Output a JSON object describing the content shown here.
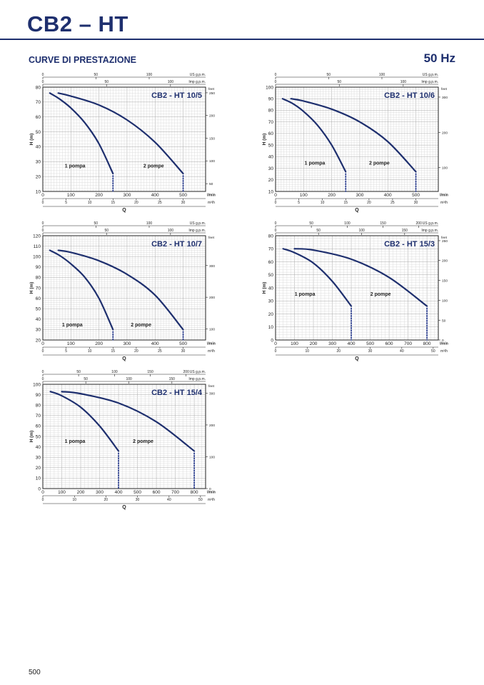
{
  "page": {
    "title": "CB2 – HT",
    "section": "CURVE DI PRESTAZIONE",
    "frequency": "50 Hz",
    "page_number": "500"
  },
  "colors": {
    "brand": "#1e2f6e",
    "curve": "#1e2f6e",
    "grid": "#c8c8c8",
    "dots": "#2a3d8f"
  },
  "chart_data": [
    {
      "type": "line",
      "title": "CB2 - HT 10/5",
      "xlabel": "Q",
      "ylabel": "H (m)",
      "x_unit": "l/min",
      "xlim": [
        0,
        580
      ],
      "ylim": [
        10,
        80
      ],
      "x_ticks": [
        0,
        100,
        200,
        300,
        400,
        500
      ],
      "y_ticks": [
        10,
        20,
        30,
        40,
        50,
        60,
        70,
        80
      ],
      "secondary_axes": [
        {
          "name": "US g.p.m.",
          "ticks": [
            [
              "0",
              0
            ],
            [
              "50",
              189
            ],
            [
              "100",
              379
            ]
          ]
        },
        {
          "name": "Imp g.p.m.",
          "ticks": [
            [
              "0",
              0
            ],
            [
              "50",
              227
            ],
            [
              "100",
              455
            ]
          ]
        },
        {
          "name": "m³/h",
          "ticks": [
            [
              "0",
              0
            ],
            [
              "5",
              83
            ],
            [
              "10",
              167
            ],
            [
              "15",
              250
            ],
            [
              "20",
              333
            ],
            [
              "25",
              417
            ],
            [
              "30",
              500
            ]
          ]
        }
      ],
      "feet_axis": {
        "name": "feet",
        "ticks": [
          [
            "50",
            15.2
          ],
          [
            "100",
            30.5
          ],
          [
            "150",
            45.7
          ],
          [
            "200",
            61
          ],
          [
            "250",
            76.2
          ]
        ]
      },
      "series": [
        {
          "name": "1 pompa",
          "x": [
            25,
            60,
            100,
            150,
            200,
            250
          ],
          "y": [
            76,
            72,
            66,
            56,
            42,
            22
          ],
          "cutoff": 250
        },
        {
          "name": "2 pompe",
          "x": [
            55,
            100,
            200,
            300,
            400,
            500
          ],
          "y": [
            76,
            74,
            68,
            58,
            43,
            22
          ],
          "cutoff": 500
        }
      ],
      "labels": [
        {
          "text": "1 pompa",
          "x": 115,
          "y": 26
        },
        {
          "text": "2 pompe",
          "x": 395,
          "y": 26
        }
      ]
    },
    {
      "type": "line",
      "title": "CB2 - HT 10/6",
      "xlabel": "Q",
      "ylabel": "H (m)",
      "x_unit": "l/min",
      "xlim": [
        0,
        580
      ],
      "ylim": [
        10,
        100
      ],
      "x_ticks": [
        0,
        100,
        200,
        300,
        400,
        500
      ],
      "y_ticks": [
        10,
        20,
        30,
        40,
        50,
        60,
        70,
        80,
        90,
        100
      ],
      "secondary_axes": [
        {
          "name": "US g.p.m.",
          "ticks": [
            [
              "0",
              0
            ],
            [
              "50",
              189
            ],
            [
              "100",
              379
            ]
          ]
        },
        {
          "name": "Imp g.p.m.",
          "ticks": [
            [
              "0",
              0
            ],
            [
              "50",
              227
            ],
            [
              "100",
              455
            ]
          ]
        },
        {
          "name": "m³/h",
          "ticks": [
            [
              "0",
              0
            ],
            [
              "5",
              83
            ],
            [
              "10",
              167
            ],
            [
              "15",
              250
            ],
            [
              "20",
              333
            ],
            [
              "25",
              417
            ],
            [
              "30",
              500
            ]
          ]
        }
      ],
      "feet_axis": {
        "name": "feet",
        "ticks": [
          [
            "100",
            30.5
          ],
          [
            "200",
            61
          ],
          [
            "300",
            91.4
          ]
        ]
      },
      "series": [
        {
          "name": "1 pompa",
          "x": [
            25,
            60,
            100,
            150,
            200,
            250
          ],
          "y": [
            90,
            86,
            79,
            67,
            50,
            27
          ],
          "cutoff": 250
        },
        {
          "name": "2 pompe",
          "x": [
            55,
            100,
            200,
            300,
            400,
            500
          ],
          "y": [
            90,
            88,
            81,
            70,
            53,
            27
          ],
          "cutoff": 500
        }
      ],
      "labels": [
        {
          "text": "1 pompa",
          "x": 140,
          "y": 33
        },
        {
          "text": "2 pompe",
          "x": 370,
          "y": 33
        }
      ]
    },
    {
      "type": "line",
      "title": "CB2 - HT 10/7",
      "xlabel": "Q",
      "ylabel": "H (m)",
      "x_unit": "l/min",
      "xlim": [
        0,
        580
      ],
      "ylim": [
        20,
        120
      ],
      "x_ticks": [
        0,
        100,
        200,
        300,
        400,
        500
      ],
      "y_ticks": [
        20,
        30,
        40,
        50,
        60,
        70,
        80,
        90,
        100,
        110,
        120
      ],
      "secondary_axes": [
        {
          "name": "US g.p.m.",
          "ticks": [
            [
              "0",
              0
            ],
            [
              "50",
              189
            ],
            [
              "100",
              379
            ]
          ]
        },
        {
          "name": "Imp g.p.m.",
          "ticks": [
            [
              "0",
              0
            ],
            [
              "50",
              227
            ],
            [
              "100",
              455
            ]
          ]
        },
        {
          "name": "m³/h",
          "ticks": [
            [
              "0",
              0
            ],
            [
              "5",
              83
            ],
            [
              "10",
              167
            ],
            [
              "15",
              250
            ],
            [
              "20",
              333
            ],
            [
              "25",
              417
            ],
            [
              "30",
              500
            ]
          ]
        }
      ],
      "feet_axis": {
        "name": "feet",
        "ticks": [
          [
            "100",
            30.5
          ],
          [
            "200",
            61
          ],
          [
            "300",
            91.4
          ]
        ]
      },
      "series": [
        {
          "name": "1 pompa",
          "x": [
            25,
            60,
            100,
            150,
            200,
            250
          ],
          "y": [
            106,
            101,
            93,
            80,
            60,
            30
          ],
          "cutoff": 250
        },
        {
          "name": "2 pompe",
          "x": [
            55,
            100,
            200,
            300,
            400,
            500
          ],
          "y": [
            106,
            104,
            96,
            83,
            63,
            30
          ],
          "cutoff": 500
        }
      ],
      "labels": [
        {
          "text": "1 pompa",
          "x": 105,
          "y": 33
        },
        {
          "text": "2 pompe",
          "x": 350,
          "y": 33
        }
      ]
    },
    {
      "type": "line",
      "title": "CB2 - HT 15/3",
      "xlabel": "Q",
      "ylabel": "H (m)",
      "x_unit": "l/min",
      "xlim": [
        0,
        860
      ],
      "ylim": [
        0,
        80
      ],
      "x_ticks": [
        0,
        100,
        200,
        300,
        400,
        500,
        600,
        700,
        800
      ],
      "y_ticks": [
        0,
        10,
        20,
        30,
        40,
        50,
        60,
        70,
        80
      ],
      "secondary_axes": [
        {
          "name": "US g.p.m.",
          "ticks": [
            [
              "0",
              0
            ],
            [
              "50",
              189
            ],
            [
              "100",
              379
            ],
            [
              "150",
              568
            ],
            [
              "200",
              757
            ]
          ]
        },
        {
          "name": "Imp g.p.m.",
          "ticks": [
            [
              "0",
              0
            ],
            [
              "50",
              227
            ],
            [
              "100",
              455
            ],
            [
              "150",
              682
            ]
          ]
        },
        {
          "name": "m³/h",
          "ticks": [
            [
              "0",
              0
            ],
            [
              "10",
              167
            ],
            [
              "20",
              333
            ],
            [
              "30",
              500
            ],
            [
              "40",
              667
            ],
            [
              "50",
              833
            ]
          ]
        }
      ],
      "feet_axis": {
        "name": "feet",
        "ticks": [
          [
            "0",
            0
          ],
          [
            "50",
            15.2
          ],
          [
            "100",
            30.5
          ],
          [
            "150",
            45.7
          ],
          [
            "200",
            61
          ],
          [
            "250",
            76.2
          ]
        ]
      },
      "series": [
        {
          "name": "1 pompa",
          "x": [
            40,
            100,
            200,
            300,
            400
          ],
          "y": [
            70,
            67,
            59,
            45,
            26
          ],
          "cutoff": 400
        },
        {
          "name": "2 pompe",
          "x": [
            100,
            200,
            400,
            600,
            800
          ],
          "y": [
            70,
            69,
            62,
            48,
            26
          ],
          "cutoff": 800
        }
      ],
      "labels": [
        {
          "text": "1 pompa",
          "x": 155,
          "y": 34
        },
        {
          "text": "2 pompe",
          "x": 555,
          "y": 34
        }
      ]
    },
    {
      "type": "line",
      "title": "CB2 - HT 15/4",
      "xlabel": "Q",
      "ylabel": "H (m)",
      "x_unit": "l/min",
      "xlim": [
        0,
        860
      ],
      "ylim": [
        0,
        100
      ],
      "x_ticks": [
        0,
        100,
        200,
        300,
        400,
        500,
        600,
        700,
        800
      ],
      "y_ticks": [
        0,
        10,
        20,
        30,
        40,
        50,
        60,
        70,
        80,
        90,
        100
      ],
      "secondary_axes": [
        {
          "name": "US g.p.m.",
          "ticks": [
            [
              "0",
              0
            ],
            [
              "50",
              189
            ],
            [
              "100",
              379
            ],
            [
              "150",
              568
            ],
            [
              "200",
              757
            ]
          ]
        },
        {
          "name": "Imp g.p.m.",
          "ticks": [
            [
              "0",
              0
            ],
            [
              "50",
              227
            ],
            [
              "100",
              455
            ],
            [
              "150",
              682
            ]
          ]
        },
        {
          "name": "m³/h",
          "ticks": [
            [
              "0",
              0
            ],
            [
              "10",
              167
            ],
            [
              "20",
              333
            ],
            [
              "30",
              500
            ],
            [
              "40",
              667
            ],
            [
              "50",
              833
            ]
          ]
        }
      ],
      "feet_axis": {
        "name": "feet",
        "ticks": [
          [
            "0",
            0
          ],
          [
            "100",
            30.5
          ],
          [
            "200",
            61
          ],
          [
            "300",
            91.4
          ]
        ]
      },
      "series": [
        {
          "name": "1 pompa",
          "x": [
            40,
            100,
            200,
            300,
            400
          ],
          "y": [
            93,
            89,
            78,
            60,
            36
          ],
          "cutoff": 400
        },
        {
          "name": "2 pompe",
          "x": [
            100,
            200,
            400,
            600,
            800
          ],
          "y": [
            93,
            91,
            82,
            64,
            36
          ],
          "cutoff": 800
        }
      ],
      "labels": [
        {
          "text": "1 pompa",
          "x": 170,
          "y": 44
        },
        {
          "text": "2 pompe",
          "x": 530,
          "y": 44
        }
      ]
    }
  ]
}
